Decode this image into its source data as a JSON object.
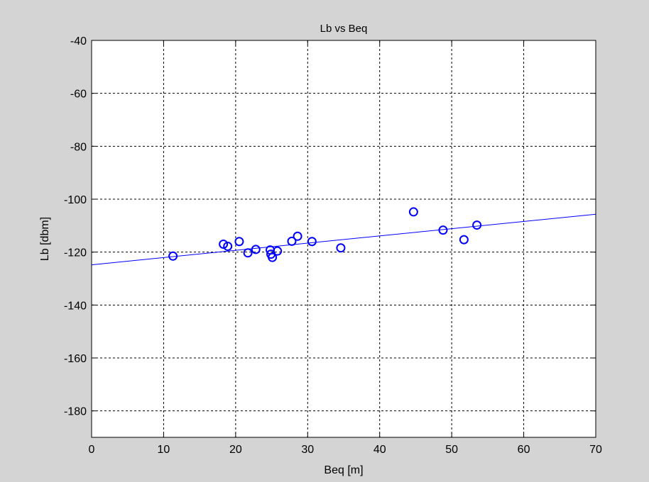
{
  "chart_data": {
    "type": "scatter",
    "title": "Lb vs Beq",
    "xlabel": "Beq [m]",
    "ylabel": "Lb [dbm]",
    "xlim": [
      0,
      70
    ],
    "ylim": [
      -190,
      -40
    ],
    "xticks": [
      0,
      10,
      20,
      30,
      40,
      50,
      60,
      70
    ],
    "yticks": [
      -40,
      -60,
      -80,
      -100,
      -120,
      -140,
      -160,
      -180
    ],
    "grid": true,
    "colors": {
      "series": "#0000ff",
      "background": "#d4d4d4",
      "axes_bg": "#ffffff"
    },
    "series": [
      {
        "type": "scatter",
        "marker": "circle",
        "points": [
          {
            "x": 11.3,
            "y": -121.5
          },
          {
            "x": 18.3,
            "y": -117.0
          },
          {
            "x": 18.9,
            "y": -117.8
          },
          {
            "x": 20.5,
            "y": -116.0
          },
          {
            "x": 21.7,
            "y": -120.3
          },
          {
            "x": 22.8,
            "y": -119.0
          },
          {
            "x": 24.8,
            "y": -119.2
          },
          {
            "x": 24.9,
            "y": -120.8
          },
          {
            "x": 25.1,
            "y": -122.0
          },
          {
            "x": 25.8,
            "y": -119.6
          },
          {
            "x": 27.8,
            "y": -115.9
          },
          {
            "x": 28.6,
            "y": -114.0
          },
          {
            "x": 30.6,
            "y": -116.0
          },
          {
            "x": 34.6,
            "y": -118.4
          },
          {
            "x": 44.7,
            "y": -104.8
          },
          {
            "x": 48.8,
            "y": -111.7
          },
          {
            "x": 51.7,
            "y": -115.3
          },
          {
            "x": 53.5,
            "y": -109.8
          }
        ]
      },
      {
        "type": "line",
        "points": [
          {
            "x": 0,
            "y": -124.8
          },
          {
            "x": 70,
            "y": -105.7
          }
        ]
      }
    ]
  }
}
